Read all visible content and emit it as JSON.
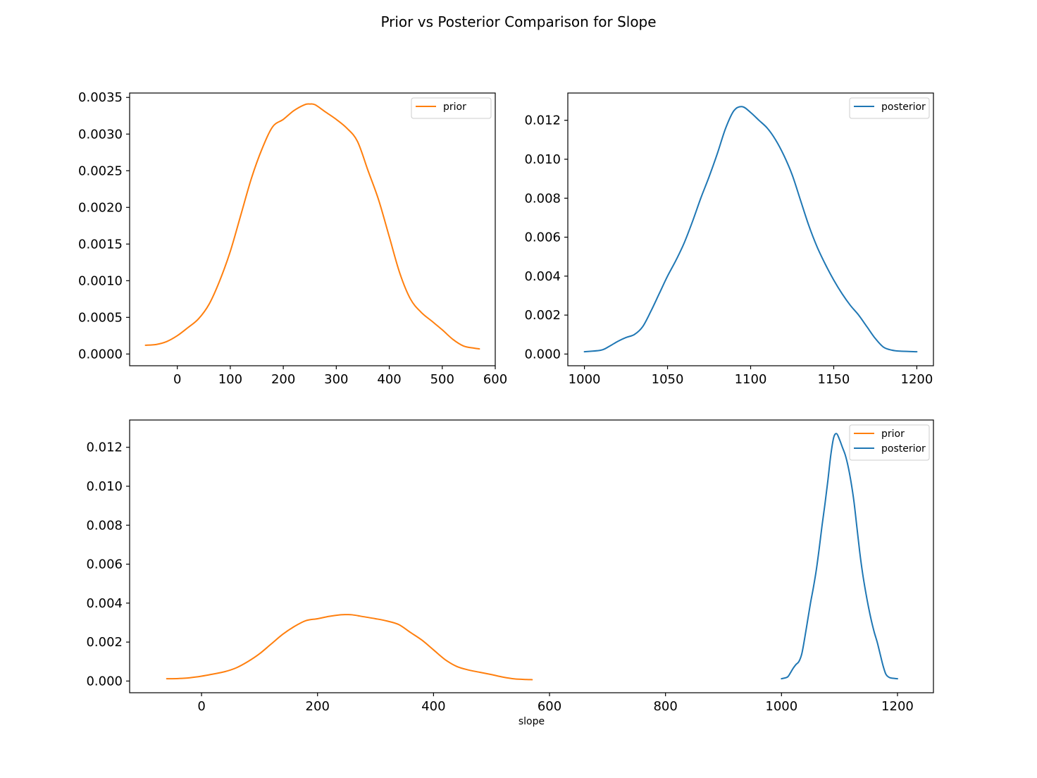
{
  "figure": {
    "title": "Prior vs Posterior Comparison for Slope"
  },
  "colors": {
    "prior": "#ff7f0e",
    "posterior": "#1f77b4"
  },
  "chart_data": [
    {
      "type": "line",
      "title": "",
      "xlabel": "",
      "ylabel": "",
      "xlim": [
        -90,
        600
      ],
      "ylim": [
        -0.00016,
        0.00356
      ],
      "xticks": [
        0,
        100,
        200,
        300,
        400,
        500,
        600
      ],
      "yticks": [
        0,
        0.0005,
        0.001,
        0.0015,
        0.002,
        0.0025,
        0.003,
        0.0035
      ],
      "ytick_labels": [
        "0.0000",
        "0.0005",
        "0.0010",
        "0.0015",
        "0.0020",
        "0.0025",
        "0.0030",
        "0.0035"
      ],
      "legend": "top-right",
      "grid": false,
      "series": [
        {
          "name": "prior",
          "color": "#ff7f0e",
          "x": [
            -60,
            -40,
            -20,
            0,
            20,
            40,
            60,
            80,
            100,
            120,
            140,
            160,
            180,
            200,
            220,
            240,
            250,
            260,
            280,
            300,
            320,
            340,
            360,
            380,
            400,
            420,
            440,
            460,
            480,
            500,
            520,
            540,
            560,
            570
          ],
          "y": [
            0.00012,
            0.00013,
            0.00017,
            0.00025,
            0.00036,
            0.00048,
            0.00068,
            0.001,
            0.0014,
            0.0019,
            0.0024,
            0.0028,
            0.0031,
            0.0032,
            0.00332,
            0.0034,
            0.00341,
            0.0034,
            0.0033,
            0.0032,
            0.00308,
            0.0029,
            0.0025,
            0.0021,
            0.0016,
            0.0011,
            0.00075,
            0.00057,
            0.00045,
            0.00033,
            0.0002,
            0.00011,
            8e-05,
            7e-05
          ]
        }
      ]
    },
    {
      "type": "line",
      "title": "",
      "xlabel": "",
      "ylabel": "",
      "xlim": [
        990,
        1210
      ],
      "ylim": [
        -0.0006,
        0.0134
      ],
      "xticks": [
        1000,
        1050,
        1100,
        1150,
        1200
      ],
      "yticks": [
        0,
        0.002,
        0.004,
        0.006,
        0.008,
        0.01,
        0.012
      ],
      "ytick_labels": [
        "0.000",
        "0.002",
        "0.004",
        "0.006",
        "0.008",
        "0.010",
        "0.012"
      ],
      "legend": "top-right",
      "grid": false,
      "series": [
        {
          "name": "posterior",
          "color": "#1f77b4",
          "x": [
            1000,
            1010,
            1015,
            1020,
            1025,
            1030,
            1035,
            1040,
            1045,
            1050,
            1055,
            1060,
            1065,
            1070,
            1075,
            1080,
            1085,
            1090,
            1095,
            1100,
            1105,
            1110,
            1115,
            1120,
            1125,
            1130,
            1135,
            1140,
            1145,
            1150,
            1155,
            1160,
            1165,
            1170,
            1175,
            1180,
            1185,
            1190,
            1200
          ],
          "y": [
            0.00012,
            0.0002,
            0.0004,
            0.00065,
            0.00085,
            0.001,
            0.0014,
            0.0022,
            0.0031,
            0.004,
            0.0048,
            0.0057,
            0.0068,
            0.008,
            0.0091,
            0.0103,
            0.0116,
            0.0125,
            0.0127,
            0.0124,
            0.012,
            0.0116,
            0.011,
            0.0102,
            0.0092,
            0.0079,
            0.0066,
            0.0055,
            0.0046,
            0.0038,
            0.0031,
            0.0025,
            0.002,
            0.0014,
            0.0008,
            0.00035,
            0.0002,
            0.00015,
            0.00012
          ]
        }
      ]
    },
    {
      "type": "line",
      "title": "",
      "xlabel": "slope",
      "ylabel": "",
      "xlim": [
        -124,
        1262
      ],
      "ylim": [
        -0.0006,
        0.0134
      ],
      "xticks": [
        0,
        200,
        400,
        600,
        800,
        1000,
        1200
      ],
      "yticks": [
        0,
        0.002,
        0.004,
        0.006,
        0.008,
        0.01,
        0.012
      ],
      "ytick_labels": [
        "0.000",
        "0.002",
        "0.004",
        "0.006",
        "0.008",
        "0.010",
        "0.012"
      ],
      "legend": "top-right",
      "grid": false,
      "series": [
        {
          "name": "prior",
          "color": "#ff7f0e",
          "x": [
            -60,
            -40,
            -20,
            0,
            20,
            40,
            60,
            80,
            100,
            120,
            140,
            160,
            180,
            200,
            220,
            240,
            250,
            260,
            280,
            300,
            320,
            340,
            360,
            380,
            400,
            420,
            440,
            460,
            480,
            500,
            520,
            540,
            560,
            570
          ],
          "y": [
            0.00012,
            0.00013,
            0.00017,
            0.00025,
            0.00036,
            0.00048,
            0.00068,
            0.001,
            0.0014,
            0.0019,
            0.0024,
            0.0028,
            0.0031,
            0.0032,
            0.00332,
            0.0034,
            0.00341,
            0.0034,
            0.0033,
            0.0032,
            0.00308,
            0.0029,
            0.0025,
            0.0021,
            0.0016,
            0.0011,
            0.00075,
            0.00057,
            0.00045,
            0.00033,
            0.0002,
            0.00011,
            8e-05,
            7e-05
          ]
        },
        {
          "name": "posterior",
          "color": "#1f77b4",
          "x": [
            1000,
            1010,
            1015,
            1020,
            1025,
            1030,
            1035,
            1040,
            1045,
            1050,
            1055,
            1060,
            1065,
            1070,
            1075,
            1080,
            1085,
            1090,
            1095,
            1100,
            1105,
            1110,
            1115,
            1120,
            1125,
            1130,
            1135,
            1140,
            1145,
            1150,
            1155,
            1160,
            1165,
            1170,
            1175,
            1180,
            1185,
            1190,
            1200
          ],
          "y": [
            0.00012,
            0.0002,
            0.0004,
            0.00065,
            0.00085,
            0.001,
            0.0014,
            0.0022,
            0.0031,
            0.004,
            0.0048,
            0.0057,
            0.0068,
            0.008,
            0.0091,
            0.0103,
            0.0116,
            0.0125,
            0.0127,
            0.0124,
            0.012,
            0.0116,
            0.011,
            0.0102,
            0.0092,
            0.0079,
            0.0066,
            0.0055,
            0.0046,
            0.0038,
            0.0031,
            0.0025,
            0.002,
            0.0014,
            0.0008,
            0.00035,
            0.0002,
            0.00015,
            0.00012
          ]
        }
      ]
    }
  ]
}
